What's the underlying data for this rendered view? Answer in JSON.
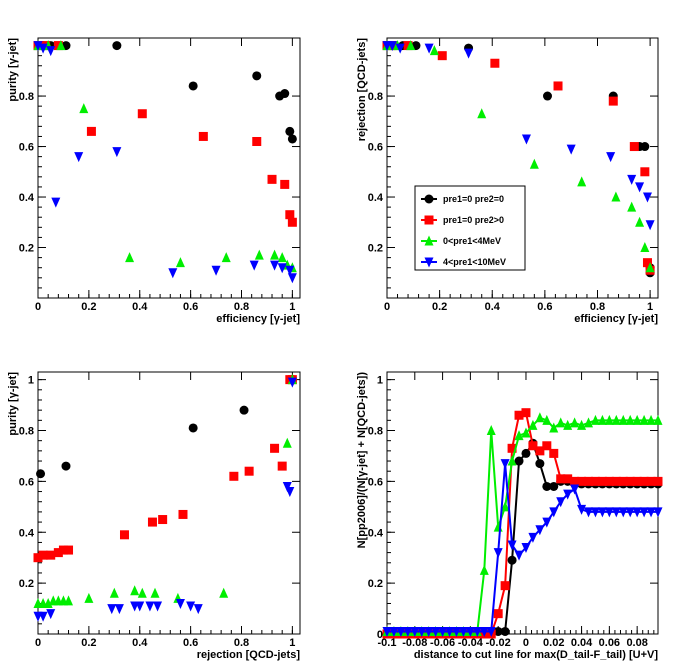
{
  "colors": {
    "pre1_0_pre2_0": "#000000",
    "pre1_0_pre2_gt0": "#ff0000",
    "pre1_lt4": "#00ee00",
    "pre1_lt10": "#0000ff"
  },
  "marker_shapes": [
    "circle",
    "square",
    "triangle-up",
    "triangle-down"
  ],
  "chart_data": [
    {
      "type": "scatter",
      "xlabel": "efficiency [γ-jet]",
      "ylabel": "purity [γ-jet]",
      "xlim": [
        0,
        1.03
      ],
      "ylim": [
        0,
        1.03
      ],
      "xticks": [
        "0",
        "0.2",
        "0.4",
        "0.6",
        "0.8",
        "1"
      ],
      "xtick_vals": [
        0,
        0.2,
        0.4,
        0.6,
        0.8,
        1
      ],
      "yticks": [
        "0.2",
        "0.4",
        "0.6",
        "0.8"
      ],
      "ytick_vals": [
        0.2,
        0.4,
        0.6,
        0.8
      ],
      "series": [
        {
          "name": "pre1=0 pre2=0",
          "marker": "circle",
          "color": "#000000",
          "x": [
            0.0,
            0.02,
            0.05,
            0.11,
            0.31,
            0.61,
            0.86,
            0.95,
            0.97,
            0.99,
            1.0
          ],
          "y": [
            1.0,
            1.0,
            1.0,
            1.0,
            1.0,
            0.84,
            0.88,
            0.8,
            0.81,
            0.66,
            0.63
          ]
        },
        {
          "name": "pre1=0 pre2>0",
          "marker": "square",
          "color": "#ff0000",
          "x": [
            0.0,
            0.03,
            0.08,
            0.21,
            0.41,
            0.65,
            0.86,
            0.92,
            0.97,
            0.99,
            1.0
          ],
          "y": [
            1.0,
            1.0,
            1.0,
            0.66,
            0.73,
            0.64,
            0.62,
            0.47,
            0.45,
            0.33,
            0.3
          ]
        },
        {
          "name": "0<pre1<4MeV",
          "marker": "triangle-up",
          "color": "#00ee00",
          "x": [
            0.0,
            0.04,
            0.09,
            0.18,
            0.36,
            0.56,
            0.74,
            0.87,
            0.93,
            0.96,
            0.98,
            1.0
          ],
          "y": [
            1.0,
            1.0,
            1.0,
            0.75,
            0.16,
            0.14,
            0.16,
            0.17,
            0.17,
            0.16,
            0.13,
            0.12
          ]
        },
        {
          "name": "4<pre1<10MeV",
          "marker": "triangle-down",
          "color": "#0000ff",
          "x": [
            0.0,
            0.02,
            0.05,
            0.07,
            0.16,
            0.31,
            0.53,
            0.7,
            0.85,
            0.93,
            0.96,
            0.99,
            1.0
          ],
          "y": [
            1.0,
            0.99,
            0.98,
            0.38,
            0.56,
            0.58,
            0.1,
            0.11,
            0.13,
            0.13,
            0.12,
            0.11,
            0.08
          ]
        }
      ]
    },
    {
      "type": "scatter",
      "xlabel": "efficiency [γ-jet]",
      "ylabel": "rejection [QCD-jets]",
      "xlim": [
        0,
        1.03
      ],
      "ylim": [
        0,
        1.03
      ],
      "xticks": [
        "0",
        "0.2",
        "0.4",
        "0.6",
        "0.8",
        "1"
      ],
      "xtick_vals": [
        0,
        0.2,
        0.4,
        0.6,
        0.8,
        1
      ],
      "yticks": [
        "0.2",
        "0.4",
        "0.6",
        "0.8"
      ],
      "ytick_vals": [
        0.2,
        0.4,
        0.6,
        0.8
      ],
      "legend": "center-left",
      "series": [
        {
          "name": "pre1=0 pre2=0",
          "marker": "circle",
          "color": "#000000",
          "x": [
            0.0,
            0.03,
            0.06,
            0.11,
            0.31,
            0.61,
            0.86,
            0.96,
            0.98,
            1.0,
            1.0
          ],
          "y": [
            1.0,
            1.0,
            1.0,
            1.0,
            0.99,
            0.8,
            0.8,
            0.6,
            0.6,
            0.12,
            0.1
          ]
        },
        {
          "name": "pre1=0 pre2>0",
          "marker": "square",
          "color": "#ff0000",
          "x": [
            0.0,
            0.02,
            0.08,
            0.21,
            0.41,
            0.65,
            0.86,
            0.94,
            0.98,
            0.99,
            1.0
          ],
          "y": [
            1.0,
            1.0,
            1.0,
            0.96,
            0.93,
            0.84,
            0.78,
            0.6,
            0.5,
            0.14,
            0.11
          ]
        },
        {
          "name": "0<pre1<4MeV",
          "marker": "triangle-up",
          "color": "#00ee00",
          "x": [
            0.0,
            0.04,
            0.09,
            0.18,
            0.36,
            0.56,
            0.74,
            0.87,
            0.93,
            0.96,
            0.98,
            1.0
          ],
          "y": [
            1.0,
            1.0,
            1.0,
            0.98,
            0.73,
            0.53,
            0.46,
            0.4,
            0.36,
            0.3,
            0.2,
            0.12
          ]
        },
        {
          "name": "4<pre1<10MeV",
          "marker": "triangle-down",
          "color": "#0000ff",
          "x": [
            0.0,
            0.02,
            0.05,
            0.16,
            0.31,
            0.53,
            0.7,
            0.85,
            0.93,
            0.96,
            0.99,
            1.0
          ],
          "y": [
            1.0,
            1.0,
            0.99,
            0.99,
            0.97,
            0.63,
            0.59,
            0.56,
            0.47,
            0.44,
            0.4,
            0.29
          ]
        }
      ]
    },
    {
      "type": "scatter",
      "xlabel": "rejection [QCD-jets]",
      "ylabel": "purity [γ-jet]",
      "xlim": [
        0,
        1.03
      ],
      "ylim": [
        0,
        1.03
      ],
      "xticks": [
        "0",
        "0.2",
        "0.4",
        "0.6",
        "0.8",
        "1"
      ],
      "xtick_vals": [
        0,
        0.2,
        0.4,
        0.6,
        0.8,
        1
      ],
      "yticks": [
        "0.2",
        "0.4",
        "0.6",
        "0.8",
        "1"
      ],
      "ytick_vals": [
        0.2,
        0.4,
        0.6,
        0.8,
        1
      ],
      "series": [
        {
          "name": "pre1=0 pre2=0",
          "marker": "circle",
          "color": "#000000",
          "x": [
            0.01,
            0.11,
            0.61,
            0.81,
            1.0
          ],
          "y": [
            0.63,
            0.66,
            0.81,
            0.88,
            1.0
          ]
        },
        {
          "name": "pre1=0 pre2>0",
          "marker": "square",
          "color": "#ff0000",
          "x": [
            0.0,
            0.02,
            0.05,
            0.08,
            0.1,
            0.12,
            0.34,
            0.45,
            0.49,
            0.57,
            0.77,
            0.83,
            0.93,
            0.96,
            0.99,
            1.0
          ],
          "y": [
            0.3,
            0.31,
            0.31,
            0.32,
            0.33,
            0.33,
            0.39,
            0.44,
            0.45,
            0.47,
            0.62,
            0.64,
            0.73,
            0.66,
            1.0,
            1.0
          ]
        },
        {
          "name": "0<pre1<4MeV",
          "marker": "triangle-up",
          "color": "#00ee00",
          "x": [
            0.0,
            0.02,
            0.04,
            0.06,
            0.08,
            0.1,
            0.12,
            0.2,
            0.3,
            0.38,
            0.41,
            0.46,
            0.55,
            0.73,
            0.98,
            1.0
          ],
          "y": [
            0.12,
            0.12,
            0.12,
            0.13,
            0.13,
            0.13,
            0.13,
            0.14,
            0.16,
            0.17,
            0.16,
            0.16,
            0.14,
            0.16,
            0.75,
            1.0
          ]
        },
        {
          "name": "4<pre1<10MeV",
          "marker": "triangle-down",
          "color": "#0000ff",
          "x": [
            0.0,
            0.02,
            0.05,
            0.29,
            0.32,
            0.38,
            0.4,
            0.44,
            0.47,
            0.56,
            0.6,
            0.63,
            0.98,
            0.99,
            1.0
          ],
          "y": [
            0.07,
            0.07,
            0.08,
            0.1,
            0.1,
            0.11,
            0.11,
            0.11,
            0.11,
            0.12,
            0.11,
            0.1,
            0.58,
            0.56,
            0.99
          ]
        }
      ]
    },
    {
      "type": "line",
      "xlabel": "distance to cut line for max(D_tail-F_tail) [U+V]",
      "ylabel": "N[pp2006]/(N[γ-jet] + N[QCD-jets])",
      "xlim": [
        -0.1,
        0.095
      ],
      "ylim": [
        0,
        1.03
      ],
      "xticks": [
        "-0.1",
        "-0.08",
        "-0.06",
        "-0.04",
        "-0.02",
        "0",
        "0.02",
        "0.04",
        "0.06",
        "0.08"
      ],
      "xtick_vals": [
        -0.1,
        -0.08,
        -0.06,
        -0.04,
        -0.02,
        0,
        0.02,
        0.04,
        0.06,
        0.08
      ],
      "yticks": [
        "0",
        "0.2",
        "0.4",
        "0.6",
        "0.8",
        "1"
      ],
      "ytick_vals": [
        0,
        0.2,
        0.4,
        0.6,
        0.8,
        1
      ],
      "series": [
        {
          "name": "pre1=0 pre2=0",
          "marker": "circle",
          "color": "#000000",
          "x": [
            -0.1,
            -0.095,
            -0.09,
            -0.085,
            -0.08,
            -0.075,
            -0.07,
            -0.065,
            -0.06,
            -0.055,
            -0.05,
            -0.045,
            -0.04,
            -0.035,
            -0.03,
            -0.025,
            -0.02,
            -0.015,
            -0.01,
            -0.005,
            0.0,
            0.005,
            0.01,
            0.015,
            0.02,
            0.025,
            0.03,
            0.035,
            0.04,
            0.045,
            0.05,
            0.055,
            0.06,
            0.065,
            0.07,
            0.075,
            0.08,
            0.085,
            0.09,
            0.095
          ],
          "y": [
            0,
            0,
            0,
            0,
            0,
            0,
            0,
            0,
            0,
            0,
            0,
            0,
            0,
            0,
            0,
            0,
            0.01,
            0.01,
            0.29,
            0.68,
            0.71,
            0.75,
            0.67,
            0.58,
            0.58,
            0.6,
            0.6,
            0.59,
            0.59,
            0.59,
            0.59,
            0.59,
            0.59,
            0.59,
            0.59,
            0.59,
            0.59,
            0.59,
            0.59,
            0.59
          ]
        },
        {
          "name": "pre1=0 pre2>0",
          "marker": "square",
          "color": "#ff0000",
          "x": [
            -0.1,
            -0.095,
            -0.09,
            -0.085,
            -0.08,
            -0.075,
            -0.07,
            -0.065,
            -0.06,
            -0.055,
            -0.05,
            -0.045,
            -0.04,
            -0.035,
            -0.03,
            -0.025,
            -0.02,
            -0.015,
            -0.01,
            -0.005,
            0.0,
            0.005,
            0.01,
            0.015,
            0.02,
            0.025,
            0.03,
            0.035,
            0.04,
            0.045,
            0.05,
            0.055,
            0.06,
            0.065,
            0.07,
            0.075,
            0.08,
            0.085,
            0.09,
            0.095
          ],
          "y": [
            0,
            0,
            0,
            0,
            0,
            0,
            0,
            0,
            0,
            0,
            0,
            0,
            0,
            0,
            0,
            0,
            0.08,
            0.19,
            0.73,
            0.86,
            0.87,
            0.74,
            0.72,
            0.74,
            0.71,
            0.61,
            0.61,
            0.6,
            0.6,
            0.6,
            0.6,
            0.6,
            0.6,
            0.6,
            0.6,
            0.6,
            0.6,
            0.6,
            0.6,
            0.6
          ]
        },
        {
          "name": "0<pre1<4MeV",
          "marker": "triangle-up",
          "color": "#00ee00",
          "x": [
            -0.1,
            -0.095,
            -0.09,
            -0.085,
            -0.08,
            -0.075,
            -0.07,
            -0.065,
            -0.06,
            -0.055,
            -0.05,
            -0.045,
            -0.04,
            -0.035,
            -0.03,
            -0.025,
            -0.02,
            -0.015,
            -0.01,
            -0.005,
            0.0,
            0.005,
            0.01,
            0.015,
            0.02,
            0.025,
            0.03,
            0.035,
            0.04,
            0.045,
            0.05,
            0.055,
            0.06,
            0.065,
            0.07,
            0.075,
            0.08,
            0.085,
            0.09,
            0.095
          ],
          "y": [
            0.01,
            0.01,
            0.01,
            0.01,
            0.01,
            0.01,
            0.01,
            0.01,
            0.01,
            0.01,
            0.01,
            0.01,
            0.01,
            0.01,
            0.25,
            0.8,
            0.42,
            0.5,
            0.68,
            0.78,
            0.79,
            0.82,
            0.85,
            0.84,
            0.81,
            0.83,
            0.82,
            0.83,
            0.82,
            0.83,
            0.84,
            0.84,
            0.84,
            0.84,
            0.84,
            0.84,
            0.84,
            0.84,
            0.84,
            0.84
          ]
        },
        {
          "name": "4<pre1<10MeV",
          "marker": "triangle-down",
          "color": "#0000ff",
          "x": [
            -0.1,
            -0.095,
            -0.09,
            -0.085,
            -0.08,
            -0.075,
            -0.07,
            -0.065,
            -0.06,
            -0.055,
            -0.05,
            -0.045,
            -0.04,
            -0.035,
            -0.03,
            -0.025,
            -0.02,
            -0.015,
            -0.01,
            -0.005,
            0.0,
            0.005,
            0.01,
            0.015,
            0.02,
            0.025,
            0.03,
            0.035,
            0.04,
            0.045,
            0.05,
            0.055,
            0.06,
            0.065,
            0.07,
            0.075,
            0.08,
            0.085,
            0.09,
            0.095
          ],
          "y": [
            0.01,
            0.01,
            0.01,
            0.01,
            0.01,
            0.01,
            0.01,
            0.01,
            0.01,
            0.01,
            0.01,
            0.01,
            0.01,
            0.01,
            0.01,
            0.01,
            0.32,
            0.67,
            0.35,
            0.31,
            0.34,
            0.38,
            0.41,
            0.44,
            0.48,
            0.52,
            0.55,
            0.57,
            0.49,
            0.48,
            0.48,
            0.48,
            0.48,
            0.48,
            0.48,
            0.48,
            0.48,
            0.48,
            0.48,
            0.48
          ]
        }
      ]
    }
  ]
}
